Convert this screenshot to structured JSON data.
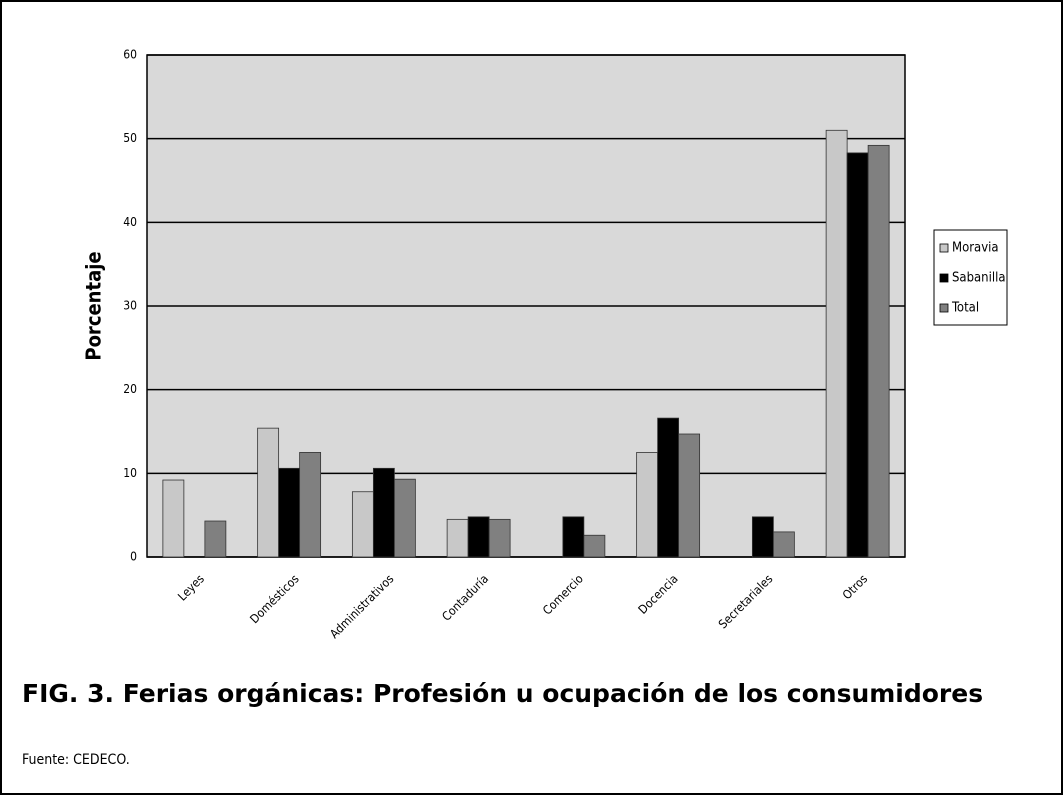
{
  "chart_data": {
    "type": "bar",
    "y_label": "Porcentaje",
    "categories": [
      "Leyes",
      "Domésticos",
      "Administrativos",
      "Contaduría",
      "Comercio",
      "Docencia",
      "Secretariales",
      "Otros"
    ],
    "series": [
      {
        "name": "Moravia",
        "color": "#c8c8c8",
        "values": [
          9.2,
          15.4,
          7.8,
          4.5,
          0,
          12.5,
          0,
          51
        ]
      },
      {
        "name": "Sabanilla",
        "color": "#000000",
        "values": [
          0,
          10.6,
          10.6,
          4.8,
          4.8,
          16.6,
          4.8,
          48.3
        ]
      },
      {
        "name": "Total",
        "color": "#808080",
        "values": [
          4.3,
          12.5,
          9.3,
          4.5,
          2.6,
          14.7,
          3.0,
          49.2
        ]
      }
    ],
    "ylim": [
      0,
      60
    ],
    "yticks": [
      0,
      10,
      20,
      30,
      40,
      50,
      60
    ],
    "grid": true,
    "legend": "right",
    "caption": "FIG. 3. Ferias orgánicas: Profesión u ocupación de los consumidores",
    "source": "Fuente: CEDECO."
  }
}
